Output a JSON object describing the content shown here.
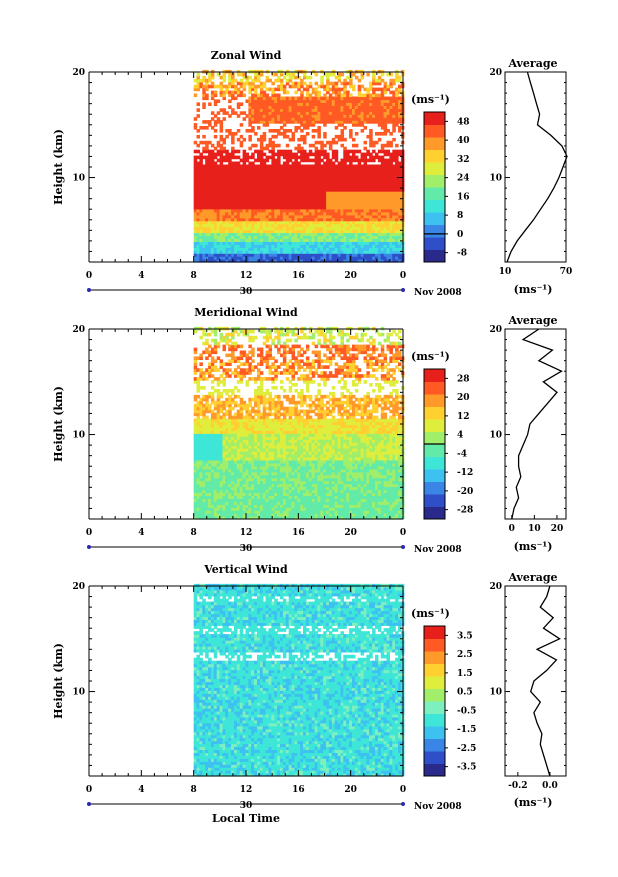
{
  "chart_data": [
    {
      "type": "heatmap",
      "title": "Zonal Wind",
      "ylabel": "Height (km)",
      "xlim": [
        0,
        24
      ],
      "ylim": [
        2,
        20
      ],
      "x_ticks": [
        "0",
        "4",
        "8",
        "12",
        "16",
        "20",
        "0"
      ],
      "y_ticks": [
        "10",
        "20"
      ],
      "date_label": "30",
      "month_label": "Nov 2008",
      "data_start_hour": 8,
      "colorbar": {
        "unit_label": "(ms⁻¹)",
        "ticks": [
          "48",
          "40",
          "32",
          "24",
          "16",
          "8",
          "0",
          "-8"
        ],
        "min": -12,
        "max": 52,
        "zero_line": 0
      },
      "profile": {
        "title": "Average",
        "xlabel": "(ms⁻¹)",
        "x_ticks": [
          "10",
          "70"
        ],
        "xlim": [
          10,
          70
        ],
        "heights": [
          2,
          3,
          4,
          5,
          6,
          7,
          8,
          9,
          10,
          11,
          12,
          13,
          14,
          15,
          16,
          17,
          18,
          19,
          20
        ],
        "values": [
          12,
          16,
          22,
          30,
          38,
          45,
          52,
          58,
          63,
          67,
          71,
          66,
          55,
          42,
          44,
          41,
          38,
          35,
          32
        ]
      }
    },
    {
      "type": "heatmap",
      "title": "Meridional Wind",
      "ylabel": "Height (km)",
      "xlim": [
        0,
        24
      ],
      "ylim": [
        2,
        20
      ],
      "x_ticks": [
        "0",
        "4",
        "8",
        "12",
        "16",
        "20",
        "0"
      ],
      "y_ticks": [
        "10",
        "20"
      ],
      "date_label": "30",
      "month_label": "Nov 2008",
      "data_start_hour": 8,
      "colorbar": {
        "unit_label": "(ms⁻¹)",
        "ticks": [
          "28",
          "20",
          "12",
          "4",
          "-4",
          "-12",
          "-20",
          "-28"
        ],
        "min": -32,
        "max": 32,
        "zero_line": 0
      },
      "profile": {
        "title": "Average",
        "xlabel": "(ms⁻¹)",
        "x_ticks": [
          "0",
          "10",
          "20"
        ],
        "xlim": [
          -3,
          24
        ],
        "heights": [
          2,
          3,
          4,
          5,
          6,
          7,
          8,
          9,
          10,
          11,
          12,
          13,
          14,
          15,
          16,
          17,
          18,
          19,
          20
        ],
        "values": [
          0,
          1,
          3,
          2,
          4,
          3,
          3,
          5,
          7,
          8,
          12,
          16,
          20,
          14,
          22,
          12,
          18,
          5,
          12
        ]
      }
    },
    {
      "type": "heatmap",
      "title": "Vertical Wind",
      "ylabel": "Height (km)",
      "xlabel": "Local Time",
      "xlim": [
        0,
        24
      ],
      "ylim": [
        2,
        20
      ],
      "x_ticks": [
        "0",
        "4",
        "8",
        "12",
        "16",
        "20",
        "0"
      ],
      "y_ticks": [
        "10",
        "20"
      ],
      "date_label": "30",
      "month_label": "Nov 2008",
      "data_start_hour": 8,
      "colorbar": {
        "unit_label": "(ms⁻¹)",
        "ticks": [
          "3.5",
          "2.5",
          "1.5",
          "0.5",
          "-0.5",
          "-1.5",
          "-2.5",
          "-3.5"
        ],
        "min": -4,
        "max": 4,
        "zero_line": null
      },
      "profile": {
        "title": "Average",
        "xlabel": "(ms⁻¹)",
        "x_ticks": [
          "-0.2",
          "0.0"
        ],
        "xlim": [
          -0.28,
          0.1
        ],
        "heights": [
          2,
          3,
          4,
          5,
          6,
          7,
          8,
          9,
          10,
          11,
          12,
          13,
          14,
          15,
          16,
          17,
          18,
          19,
          20
        ],
        "values": [
          0.0,
          -0.02,
          -0.04,
          -0.06,
          -0.05,
          -0.08,
          -0.1,
          -0.06,
          -0.12,
          -0.1,
          -0.02,
          0.04,
          -0.08,
          0.06,
          -0.04,
          0.02,
          -0.06,
          -0.02,
          0.0
        ]
      }
    }
  ]
}
